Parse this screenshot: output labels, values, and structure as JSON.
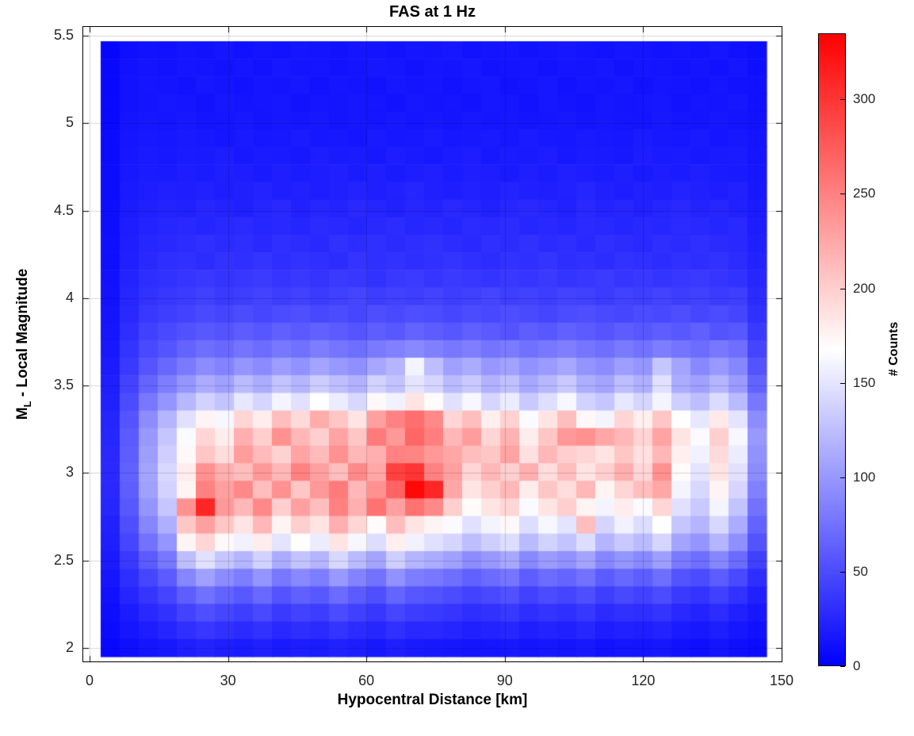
{
  "chart_data": {
    "type": "heatmap",
    "title": "FAS at 1 Hz",
    "xlabel": "Hypocentral Distance [km]",
    "ylabel_m": "M",
    "ylabel_sub": "L",
    "ylabel_rest": " - Local Magnitude",
    "x_axis": {
      "min": 0,
      "max": 150,
      "tick_values": [
        0,
        30,
        60,
        90,
        120,
        150
      ],
      "tick_labels": [
        "0",
        "30",
        "60",
        "90",
        "120",
        "150"
      ]
    },
    "y_axis": {
      "min": 2,
      "max": 5.5,
      "tick_values": [
        5.5,
        5,
        4.5,
        4,
        3.5,
        3,
        2.5,
        2
      ],
      "tick_labels": [
        "5.5",
        "5",
        "4.5",
        "4",
        "3.5",
        "3",
        "2.5",
        "2"
      ]
    },
    "grid": true,
    "colorbar": {
      "label": "# Counts",
      "min": 0,
      "max": 335,
      "tick_values": [
        0,
        50,
        100,
        150,
        200,
        250,
        300
      ],
      "tick_labels": [
        "0",
        "50",
        "100",
        "150",
        "200",
        "250",
        "300"
      ],
      "colormap": [
        "#0000ff",
        "#ffffff",
        "#ff0000"
      ],
      "white_point_value": 167
    },
    "x_bins": {
      "start_km": 2.4,
      "width_km": 4.12,
      "count": 35
    },
    "y_bins": {
      "start_mag": 1.95,
      "width_mag": 0.1,
      "count": 35
    },
    "rows_order": "magnitude descending, 5.4 down to 2.0",
    "row_magnitudes": [
      5.4,
      5.3,
      5.2,
      5.1,
      5.0,
      4.9,
      4.8,
      4.7,
      4.6,
      4.5,
      4.4,
      4.3,
      4.2,
      4.1,
      4.0,
      3.9,
      3.8,
      3.7,
      3.6,
      3.5,
      3.4,
      3.3,
      3.2,
      3.1,
      3.0,
      2.9,
      2.8,
      2.7,
      2.6,
      2.5,
      2.4,
      2.3,
      2.2,
      2.1,
      2.0
    ],
    "values": [
      [
        4,
        10,
        12,
        11,
        13,
        12,
        14,
        11,
        13,
        12,
        14,
        13,
        12,
        14,
        13,
        12,
        14,
        13,
        15,
        12,
        13,
        14,
        12,
        13,
        15,
        13,
        12,
        14,
        13,
        12,
        13,
        12,
        14,
        11,
        9
      ],
      [
        5,
        11,
        13,
        12,
        14,
        13,
        12,
        14,
        12,
        15,
        13,
        14,
        12,
        13,
        15,
        14,
        12,
        14,
        13,
        15,
        12,
        13,
        14,
        12,
        14,
        13,
        15,
        12,
        14,
        13,
        12,
        13,
        11,
        14,
        10
      ],
      [
        5,
        12,
        14,
        13,
        12,
        15,
        13,
        12,
        14,
        13,
        15,
        12,
        14,
        13,
        12,
        15,
        13,
        14,
        12,
        14,
        15,
        12,
        13,
        15,
        12,
        14,
        13,
        15,
        12,
        14,
        13,
        12,
        14,
        12,
        11
      ],
      [
        6,
        12,
        13,
        15,
        14,
        12,
        15,
        13,
        14,
        15,
        12,
        14,
        13,
        15,
        14,
        12,
        15,
        13,
        14,
        12,
        15,
        14,
        12,
        15,
        13,
        12,
        15,
        13,
        14,
        15,
        12,
        14,
        13,
        15,
        11
      ],
      [
        6,
        13,
        15,
        14,
        16,
        13,
        14,
        16,
        13,
        15,
        14,
        16,
        13,
        15,
        14,
        16,
        14,
        15,
        13,
        16,
        14,
        15,
        13,
        14,
        16,
        13,
        15,
        14,
        13,
        16,
        14,
        13,
        15,
        13,
        12
      ],
      [
        7,
        14,
        16,
        15,
        17,
        16,
        14,
        17,
        15,
        16,
        18,
        15,
        16,
        14,
        17,
        15,
        16,
        18,
        15,
        16,
        17,
        15,
        18,
        16,
        15,
        17,
        16,
        15,
        18,
        16,
        15,
        17,
        14,
        16,
        13
      ],
      [
        7,
        15,
        17,
        16,
        18,
        17,
        19,
        16,
        18,
        17,
        16,
        19,
        17,
        18,
        16,
        19,
        17,
        16,
        18,
        19,
        16,
        18,
        17,
        19,
        16,
        18,
        17,
        16,
        19,
        17,
        18,
        16,
        17,
        18,
        14
      ],
      [
        8,
        16,
        18,
        17,
        19,
        18,
        20,
        19,
        17,
        20,
        18,
        19,
        21,
        18,
        20,
        17,
        19,
        21,
        18,
        20,
        19,
        17,
        20,
        18,
        21,
        19,
        18,
        20,
        17,
        19,
        18,
        20,
        18,
        17,
        15
      ],
      [
        8,
        17,
        19,
        21,
        20,
        22,
        19,
        21,
        23,
        20,
        22,
        19,
        21,
        23,
        20,
        22,
        24,
        21,
        19,
        22,
        20,
        23,
        21,
        20,
        22,
        24,
        21,
        19,
        22,
        20,
        23,
        21,
        19,
        22,
        16
      ],
      [
        9,
        18,
        21,
        23,
        22,
        25,
        23,
        21,
        24,
        26,
        22,
        25,
        23,
        26,
        24,
        22,
        25,
        23,
        26,
        24,
        22,
        25,
        27,
        24,
        22,
        26,
        23,
        25,
        22,
        24,
        26,
        23,
        25,
        22,
        18
      ],
      [
        9,
        19,
        23,
        25,
        27,
        24,
        26,
        28,
        25,
        27,
        24,
        28,
        26,
        24,
        27,
        29,
        25,
        27,
        24,
        28,
        26,
        29,
        25,
        27,
        24,
        28,
        26,
        24,
        27,
        25,
        28,
        26,
        24,
        27,
        19
      ],
      [
        10,
        20,
        25,
        27,
        29,
        31,
        28,
        30,
        27,
        31,
        29,
        27,
        32,
        29,
        31,
        28,
        30,
        32,
        29,
        27,
        31,
        29,
        32,
        28,
        30,
        27,
        31,
        29,
        27,
        30,
        28,
        31,
        28,
        26,
        21
      ],
      [
        10,
        21,
        27,
        30,
        32,
        29,
        33,
        31,
        34,
        30,
        33,
        31,
        29,
        34,
        31,
        33,
        30,
        32,
        34,
        31,
        29,
        33,
        31,
        34,
        30,
        32,
        29,
        33,
        31,
        29,
        32,
        30,
        33,
        29,
        23
      ],
      [
        11,
        23,
        30,
        33,
        35,
        37,
        34,
        36,
        39,
        35,
        37,
        34,
        38,
        36,
        33,
        37,
        39,
        35,
        38,
        36,
        34,
        37,
        35,
        38,
        34,
        36,
        39,
        35,
        37,
        34,
        36,
        38,
        35,
        33,
        25
      ],
      [
        12,
        25,
        33,
        36,
        39,
        42,
        38,
        41,
        44,
        40,
        43,
        39,
        42,
        45,
        40,
        43,
        41,
        44,
        40,
        42,
        45,
        41,
        43,
        40,
        44,
        42,
        39,
        43,
        41,
        44,
        40,
        42,
        39,
        41,
        28
      ],
      [
        13,
        27,
        37,
        41,
        44,
        48,
        45,
        50,
        46,
        49,
        52,
        47,
        50,
        46,
        51,
        48,
        52,
        49,
        46,
        50,
        47,
        51,
        48,
        45,
        49,
        52,
        48,
        46,
        50,
        47,
        51,
        46,
        49,
        45,
        32
      ],
      [
        14,
        30,
        42,
        48,
        53,
        58,
        55,
        61,
        57,
        63,
        59,
        64,
        60,
        56,
        62,
        58,
        65,
        61,
        57,
        63,
        59,
        55,
        62,
        58,
        64,
        60,
        56,
        61,
        57,
        62,
        58,
        63,
        55,
        58,
        38
      ],
      [
        16,
        34,
        48,
        56,
        65,
        72,
        68,
        76,
        71,
        79,
        74,
        82,
        77,
        72,
        80,
        85,
        90,
        84,
        78,
        83,
        76,
        81,
        74,
        79,
        83,
        77,
        72,
        80,
        75,
        82,
        76,
        71,
        78,
        72,
        45
      ],
      [
        18,
        38,
        56,
        68,
        80,
        92,
        86,
        98,
        91,
        103,
        96,
        108,
        100,
        94,
        110,
        118,
        160,
        125,
        105,
        112,
        99,
        106,
        95,
        102,
        110,
        97,
        92,
        104,
        98,
        130,
        108,
        90,
        100,
        88,
        55
      ],
      [
        20,
        44,
        66,
        82,
        98,
        112,
        105,
        122,
        113,
        128,
        119,
        134,
        125,
        116,
        138,
        128,
        150,
        140,
        122,
        132,
        116,
        126,
        110,
        120,
        132,
        114,
        108,
        124,
        115,
        148,
        112,
        105,
        118,
        102,
        65
      ],
      [
        22,
        50,
        78,
        98,
        120,
        138,
        128,
        152,
        140,
        160,
        148,
        168,
        155,
        142,
        172,
        158,
        185,
        170,
        148,
        162,
        140,
        155,
        132,
        146,
        162,
        138,
        130,
        152,
        140,
        160,
        135,
        125,
        144,
        122,
        78
      ],
      [
        24,
        56,
        92,
        118,
        148,
        175,
        162,
        195,
        180,
        210,
        192,
        222,
        205,
        185,
        230,
        250,
        262,
        245,
        195,
        210,
        178,
        198,
        165,
        185,
        210,
        172,
        160,
        195,
        178,
        205,
        168,
        152,
        182,
        150,
        92
      ],
      [
        25,
        60,
        100,
        130,
        165,
        195,
        180,
        220,
        200,
        240,
        215,
        200,
        228,
        205,
        255,
        235,
        268,
        252,
        215,
        232,
        195,
        218,
        180,
        205,
        235,
        240,
        225,
        215,
        196,
        228,
        185,
        165,
        200,
        162,
        100
      ],
      [
        26,
        62,
        104,
        136,
        172,
        205,
        190,
        232,
        212,
        198,
        228,
        212,
        240,
        215,
        220,
        250,
        248,
        235,
        225,
        210,
        205,
        228,
        188,
        215,
        200,
        195,
        185,
        205,
        188,
        215,
        178,
        158,
        192,
        155,
        96
      ],
      [
        27,
        64,
        108,
        142,
        180,
        240,
        220,
        210,
        235,
        215,
        250,
        230,
        210,
        245,
        225,
        292,
        300,
        250,
        230,
        195,
        215,
        200,
        220,
        190,
        210,
        185,
        200,
        220,
        195,
        240,
        170,
        150,
        185,
        148,
        92
      ],
      [
        26,
        62,
        105,
        138,
        175,
        250,
        230,
        245,
        210,
        240,
        205,
        235,
        255,
        215,
        240,
        270,
        330,
        310,
        225,
        185,
        200,
        215,
        180,
        205,
        190,
        215,
        175,
        195,
        210,
        225,
        160,
        142,
        175,
        140,
        85
      ],
      [
        25,
        58,
        98,
        130,
        240,
        310,
        235,
        215,
        245,
        200,
        230,
        210,
        250,
        220,
        260,
        230,
        260,
        245,
        200,
        170,
        185,
        195,
        165,
        185,
        200,
        175,
        160,
        180,
        165,
        195,
        148,
        132,
        160,
        128,
        75
      ],
      [
        22,
        52,
        88,
        115,
        205,
        230,
        205,
        185,
        215,
        175,
        200,
        185,
        220,
        195,
        170,
        210,
        185,
        175,
        165,
        148,
        160,
        172,
        145,
        162,
        150,
        210,
        140,
        158,
        145,
        168,
        130,
        118,
        142,
        112,
        65
      ],
      [
        20,
        46,
        75,
        98,
        175,
        195,
        172,
        158,
        180,
        150,
        168,
        155,
        185,
        162,
        145,
        178,
        158,
        148,
        140,
        125,
        135,
        145,
        122,
        138,
        128,
        145,
        118,
        132,
        122,
        140,
        108,
        98,
        118,
        94,
        55
      ],
      [
        17,
        38,
        60,
        78,
        125,
        148,
        130,
        118,
        138,
        112,
        128,
        118,
        142,
        122,
        108,
        135,
        118,
        112,
        105,
        92,
        100,
        110,
        90,
        102,
        95,
        108,
        88,
        98,
        90,
        104,
        80,
        72,
        88,
        70,
        42
      ],
      [
        14,
        30,
        46,
        60,
        88,
        105,
        92,
        82,
        98,
        78,
        90,
        82,
        100,
        86,
        75,
        95,
        82,
        78,
        72,
        64,
        70,
        77,
        62,
        71,
        66,
        75,
        60,
        68,
        62,
        72,
        55,
        50,
        61,
        48,
        30
      ],
      [
        11,
        24,
        35,
        45,
        62,
        74,
        65,
        58,
        69,
        55,
        63,
        58,
        70,
        60,
        52,
        66,
        57,
        54,
        50,
        44,
        48,
        53,
        43,
        49,
        45,
        52,
        41,
        47,
        43,
        50,
        38,
        34,
        42,
        33,
        22
      ],
      [
        9,
        18,
        26,
        33,
        44,
        52,
        46,
        41,
        48,
        38,
        44,
        40,
        49,
        42,
        36,
        46,
        40,
        38,
        35,
        30,
        33,
        37,
        30,
        34,
        31,
        36,
        28,
        32,
        30,
        34,
        26,
        23,
        29,
        22,
        16
      ],
      [
        7,
        14,
        19,
        24,
        31,
        36,
        32,
        28,
        33,
        26,
        30,
        28,
        34,
        29,
        25,
        32,
        27,
        26,
        24,
        21,
        23,
        25,
        20,
        23,
        21,
        25,
        19,
        22,
        20,
        23,
        18,
        16,
        20,
        15,
        11
      ],
      [
        5,
        10,
        13,
        16,
        20,
        23,
        20,
        18,
        21,
        17,
        19,
        18,
        22,
        19,
        16,
        20,
        17,
        16,
        15,
        13,
        14,
        16,
        13,
        15,
        13,
        16,
        12,
        14,
        13,
        15,
        11,
        10,
        13,
        10,
        7
      ]
    ]
  }
}
